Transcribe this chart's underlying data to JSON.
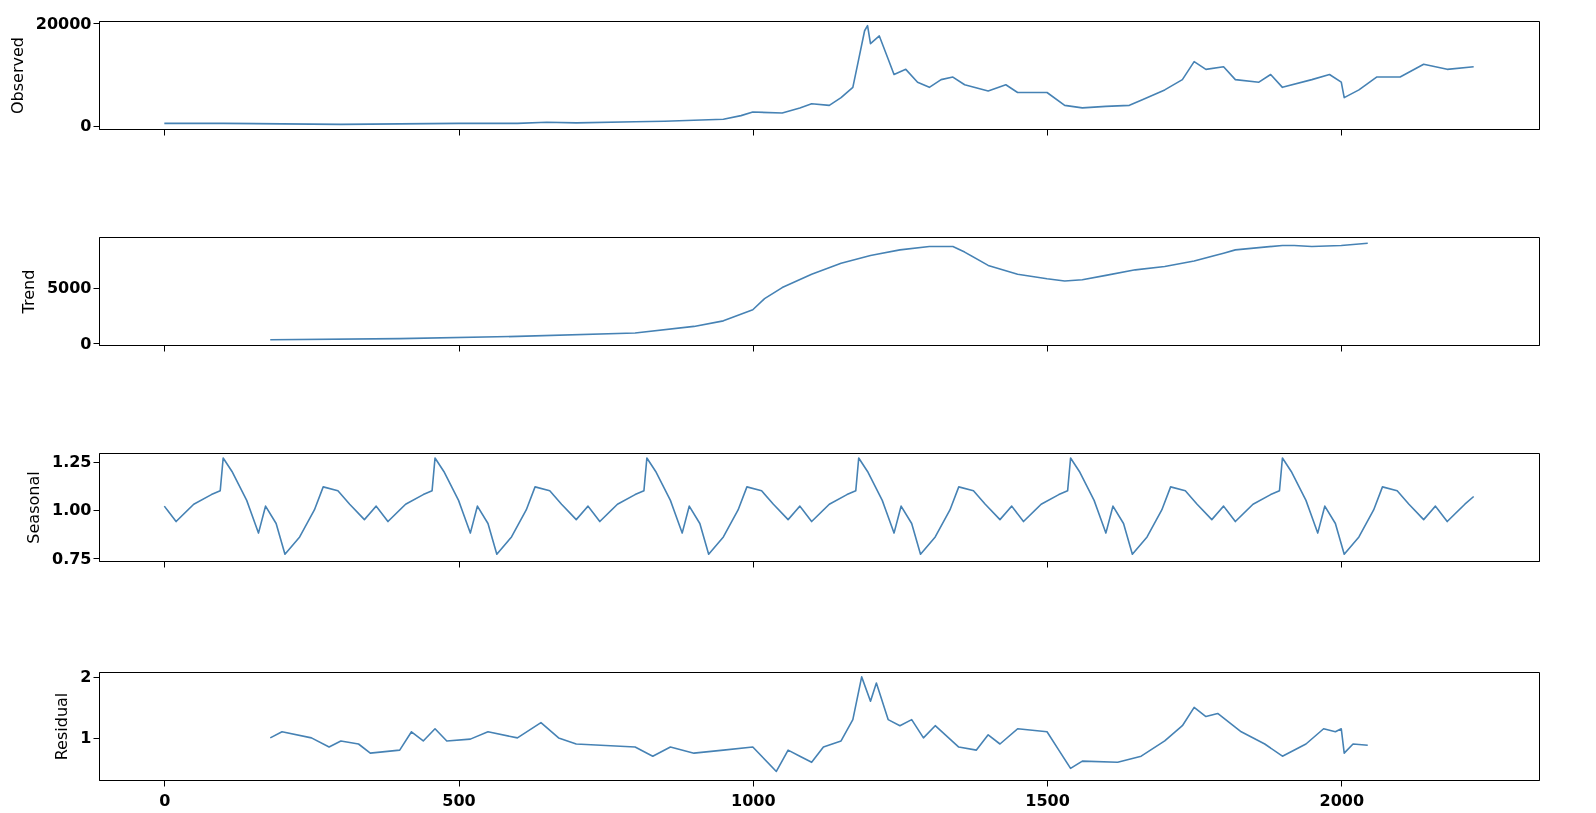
{
  "chart_data": [
    {
      "type": "line",
      "ylabel": "Observed",
      "tick_labels": "y",
      "grid": false,
      "xlim": [
        -111,
        2336
      ],
      "xticks": [
        0,
        500,
        1000,
        1500,
        2000
      ],
      "ylim": [
        -600,
        20400
      ],
      "yticks": [
        0,
        20000
      ],
      "x": [
        0,
        100,
        200,
        300,
        400,
        500,
        600,
        650,
        700,
        800,
        850,
        900,
        950,
        980,
        1000,
        1050,
        1080,
        1100,
        1130,
        1150,
        1170,
        1180,
        1190,
        1195,
        1200,
        1215,
        1230,
        1240,
        1260,
        1280,
        1300,
        1320,
        1340,
        1360,
        1400,
        1430,
        1450,
        1500,
        1530,
        1560,
        1600,
        1640,
        1660,
        1700,
        1730,
        1750,
        1770,
        1800,
        1820,
        1860,
        1880,
        1900,
        1950,
        1980,
        2000,
        2005,
        2030,
        2060,
        2100,
        2140,
        2180,
        2225
      ],
      "series": [
        {
          "color": "#4682b4",
          "values": [
            500,
            500,
            400,
            300,
            400,
            500,
            500,
            700,
            600,
            800,
            900,
            1100,
            1300,
            2000,
            2700,
            2500,
            3500,
            4300,
            4000,
            5500,
            7500,
            13000,
            18500,
            19500,
            16000,
            17500,
            13000,
            10000,
            11000,
            8500,
            7500,
            9000,
            9500,
            8000,
            6800,
            8000,
            6500,
            6500,
            4000,
            3500,
            3800,
            4000,
            5000,
            7000,
            9000,
            12500,
            11000,
            11500,
            9000,
            8500,
            10000,
            7500,
            9000,
            10000,
            8500,
            5500,
            7000,
            9500,
            9500,
            12000,
            11000,
            11500
          ]
        }
      ]
    },
    {
      "type": "line",
      "ylabel": "Trend",
      "tick_labels": "y",
      "grid": false,
      "xlim": [
        -111,
        2336
      ],
      "xticks": [
        0,
        500,
        1000,
        1500,
        2000
      ],
      "ylim": [
        -175,
        9560
      ],
      "yticks": [
        0,
        5000
      ],
      "x": [
        180,
        400,
        600,
        800,
        900,
        950,
        1000,
        1020,
        1050,
        1100,
        1150,
        1200,
        1250,
        1300,
        1340,
        1360,
        1400,
        1450,
        1500,
        1530,
        1560,
        1600,
        1650,
        1700,
        1750,
        1800,
        1820,
        1900,
        1920,
        1950,
        2000,
        2045
      ],
      "series": [
        {
          "color": "#4682b4",
          "values": [
            300,
            400,
            600,
            900,
            1500,
            2000,
            3000,
            4000,
            5000,
            6200,
            7200,
            7900,
            8400,
            8700,
            8700,
            8200,
            7000,
            6200,
            5800,
            5600,
            5700,
            6100,
            6600,
            6900,
            7400,
            8100,
            8400,
            8800,
            8800,
            8700,
            8800,
            9000
          ]
        }
      ]
    },
    {
      "type": "line",
      "ylabel": "Seasonal",
      "tick_labels": "y",
      "grid": false,
      "xlim": [
        -111,
        2336
      ],
      "xticks": [
        0,
        500,
        1000,
        1500,
        2000
      ],
      "ylim": [
        0.735,
        1.296
      ],
      "yticks": [
        {
          "value": 0.75,
          "label": "0.75"
        },
        {
          "value": 1,
          "label": "1.00"
        },
        {
          "value": 1.25,
          "label": "1.25"
        }
      ],
      "x": [
        0,
        20,
        50,
        80,
        95,
        100,
        115,
        140,
        160,
        172,
        190,
        205,
        230,
        255,
        270,
        295,
        315,
        340,
        360,
        380,
        410,
        440,
        455,
        460,
        475,
        500,
        520,
        532,
        550,
        565,
        590,
        615,
        630,
        655,
        675,
        700,
        720,
        740,
        770,
        800,
        815,
        820,
        835,
        860,
        880,
        892,
        910,
        925,
        950,
        975,
        990,
        1015,
        1035,
        1060,
        1080,
        1100,
        1130,
        1160,
        1175,
        1180,
        1195,
        1220,
        1240,
        1252,
        1270,
        1285,
        1310,
        1335,
        1350,
        1375,
        1395,
        1420,
        1440,
        1460,
        1490,
        1520,
        1535,
        1540,
        1555,
        1580,
        1600,
        1612,
        1630,
        1645,
        1670,
        1695,
        1710,
        1735,
        1755,
        1780,
        1800,
        1820,
        1850,
        1880,
        1895,
        1900,
        1915,
        1940,
        1960,
        1972,
        1990,
        2005,
        2030,
        2055,
        2070,
        2095,
        2115,
        2140,
        2160,
        2180,
        2210,
        2225
      ],
      "series": [
        {
          "color": "#4682b4",
          "values": [
            1.02,
            0.94,
            1.03,
            1.08,
            1.1,
            1.27,
            1.2,
            1.05,
            0.88,
            1.02,
            0.93,
            0.77,
            0.86,
            1.0,
            1.12,
            1.1,
            1.03,
            0.95,
            1.02,
            0.94,
            1.03,
            1.08,
            1.1,
            1.27,
            1.2,
            1.05,
            0.88,
            1.02,
            0.93,
            0.77,
            0.86,
            1.0,
            1.12,
            1.1,
            1.03,
            0.95,
            1.02,
            0.94,
            1.03,
            1.08,
            1.1,
            1.27,
            1.2,
            1.05,
            0.88,
            1.02,
            0.93,
            0.77,
            0.86,
            1.0,
            1.12,
            1.1,
            1.03,
            0.95,
            1.02,
            0.94,
            1.03,
            1.08,
            1.1,
            1.27,
            1.2,
            1.05,
            0.88,
            1.02,
            0.93,
            0.77,
            0.86,
            1.0,
            1.12,
            1.1,
            1.03,
            0.95,
            1.02,
            0.94,
            1.03,
            1.08,
            1.1,
            1.27,
            1.2,
            1.05,
            0.88,
            1.02,
            0.93,
            0.77,
            0.86,
            1.0,
            1.12,
            1.1,
            1.03,
            0.95,
            1.02,
            0.94,
            1.03,
            1.08,
            1.1,
            1.27,
            1.2,
            1.05,
            0.88,
            1.02,
            0.93,
            0.77,
            0.86,
            1.0,
            1.12,
            1.1,
            1.03,
            0.95,
            1.02,
            0.94,
            1.03,
            1.07
          ]
        }
      ]
    },
    {
      "type": "line",
      "ylabel": "Residual",
      "grid": false,
      "xlim": [
        -111,
        2336
      ],
      "xticks": [
        0,
        500,
        1000,
        1500,
        2000
      ],
      "ylim": [
        0.31,
        2.08
      ],
      "yticks": [
        1,
        2
      ],
      "x": [
        180,
        200,
        250,
        280,
        300,
        330,
        350,
        400,
        420,
        440,
        460,
        480,
        520,
        550,
        600,
        640,
        670,
        700,
        800,
        830,
        860,
        900,
        950,
        1000,
        1040,
        1060,
        1080,
        1100,
        1120,
        1150,
        1170,
        1185,
        1200,
        1210,
        1230,
        1250,
        1270,
        1290,
        1310,
        1350,
        1380,
        1400,
        1420,
        1450,
        1500,
        1520,
        1540,
        1560,
        1620,
        1660,
        1700,
        1730,
        1750,
        1770,
        1790,
        1830,
        1870,
        1900,
        1940,
        1970,
        1990,
        2000,
        2005,
        2020,
        2045
      ],
      "series": [
        {
          "color": "#4682b4",
          "values": [
            1.0,
            1.1,
            1.0,
            0.85,
            0.95,
            0.9,
            0.75,
            0.8,
            1.1,
            0.95,
            1.15,
            0.95,
            0.98,
            1.1,
            1.0,
            1.25,
            1.0,
            0.9,
            0.85,
            0.7,
            0.85,
            0.75,
            0.8,
            0.85,
            0.45,
            0.8,
            0.7,
            0.6,
            0.85,
            0.95,
            1.3,
            2.0,
            1.6,
            1.9,
            1.3,
            1.2,
            1.3,
            1.0,
            1.2,
            0.85,
            0.8,
            1.05,
            0.9,
            1.15,
            1.1,
            0.8,
            0.5,
            0.62,
            0.6,
            0.7,
            0.95,
            1.2,
            1.5,
            1.35,
            1.4,
            1.1,
            0.9,
            0.7,
            0.9,
            1.15,
            1.1,
            1.15,
            0.75,
            0.9,
            0.88
          ]
        }
      ]
    }
  ]
}
